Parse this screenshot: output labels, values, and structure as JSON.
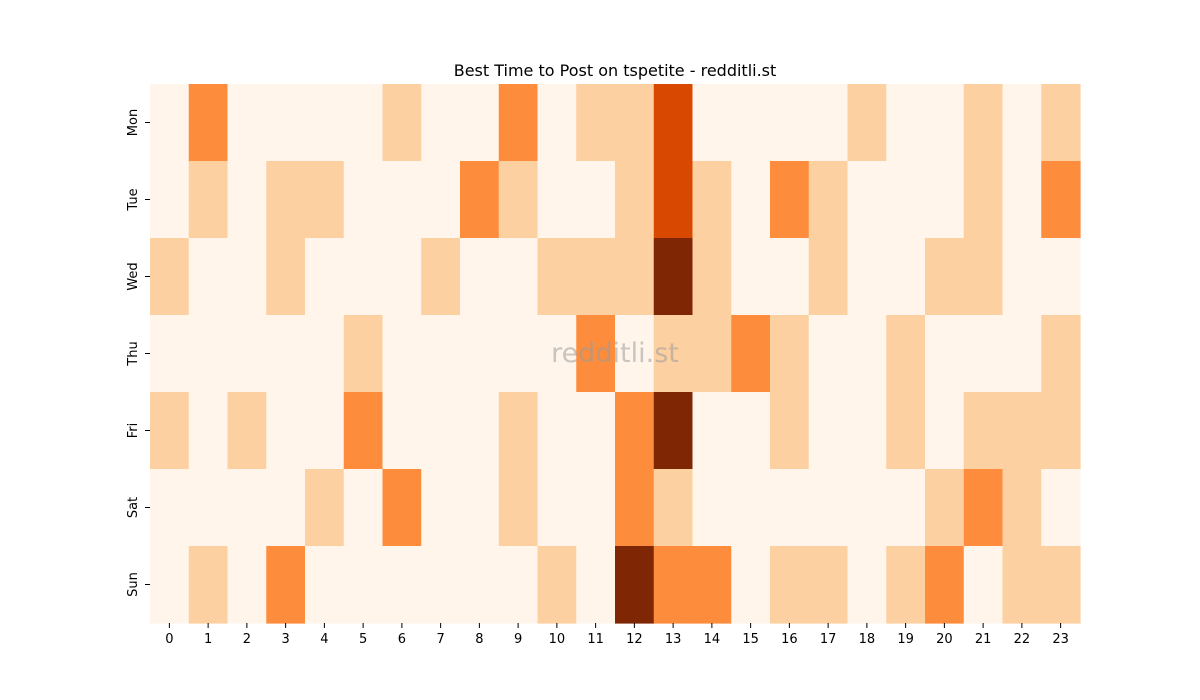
{
  "chart_data": {
    "type": "heatmap",
    "title": "Best Time to Post on tspetite - redditli.st",
    "watermark": "redditli.st",
    "x_categories": [
      "0",
      "1",
      "2",
      "3",
      "4",
      "5",
      "6",
      "7",
      "8",
      "9",
      "10",
      "11",
      "12",
      "13",
      "14",
      "15",
      "16",
      "17",
      "18",
      "19",
      "20",
      "21",
      "22",
      "23"
    ],
    "y_categories": [
      "Mon",
      "Tue",
      "Wed",
      "Thu",
      "Fri",
      "Sat",
      "Sun"
    ],
    "xlabel": "",
    "ylabel": "",
    "colormap": "Oranges",
    "vmin": 0,
    "vmax": 4,
    "palette": [
      "#fff5eb",
      "#fdd0a2",
      "#fd8d3c",
      "#d94801",
      "#7f2704"
    ],
    "values": [
      [
        0,
        2,
        0,
        0,
        0,
        0,
        1,
        0,
        0,
        2,
        0,
        1,
        1,
        3,
        0,
        0,
        0,
        0,
        1,
        0,
        0,
        1,
        0,
        1
      ],
      [
        0,
        1,
        0,
        1,
        1,
        0,
        0,
        0,
        2,
        1,
        0,
        0,
        1,
        3,
        1,
        0,
        2,
        1,
        0,
        0,
        0,
        1,
        0,
        2
      ],
      [
        1,
        0,
        0,
        1,
        0,
        0,
        0,
        1,
        0,
        0,
        1,
        1,
        1,
        4,
        1,
        0,
        0,
        1,
        0,
        0,
        1,
        1,
        0,
        0
      ],
      [
        0,
        0,
        0,
        0,
        0,
        1,
        0,
        0,
        0,
        0,
        0,
        2,
        0,
        1,
        1,
        2,
        1,
        0,
        0,
        1,
        0,
        0,
        0,
        1
      ],
      [
        1,
        0,
        1,
        0,
        0,
        2,
        0,
        0,
        0,
        1,
        0,
        0,
        2,
        4,
        0,
        0,
        1,
        0,
        0,
        1,
        0,
        1,
        1,
        1
      ],
      [
        0,
        0,
        0,
        0,
        1,
        0,
        2,
        0,
        0,
        1,
        0,
        0,
        2,
        1,
        0,
        0,
        0,
        0,
        0,
        0,
        1,
        2,
        1,
        0
      ],
      [
        0,
        1,
        0,
        2,
        0,
        0,
        0,
        0,
        0,
        0,
        1,
        0,
        4,
        2,
        2,
        0,
        1,
        1,
        0,
        1,
        2,
        0,
        1,
        1
      ]
    ]
  }
}
